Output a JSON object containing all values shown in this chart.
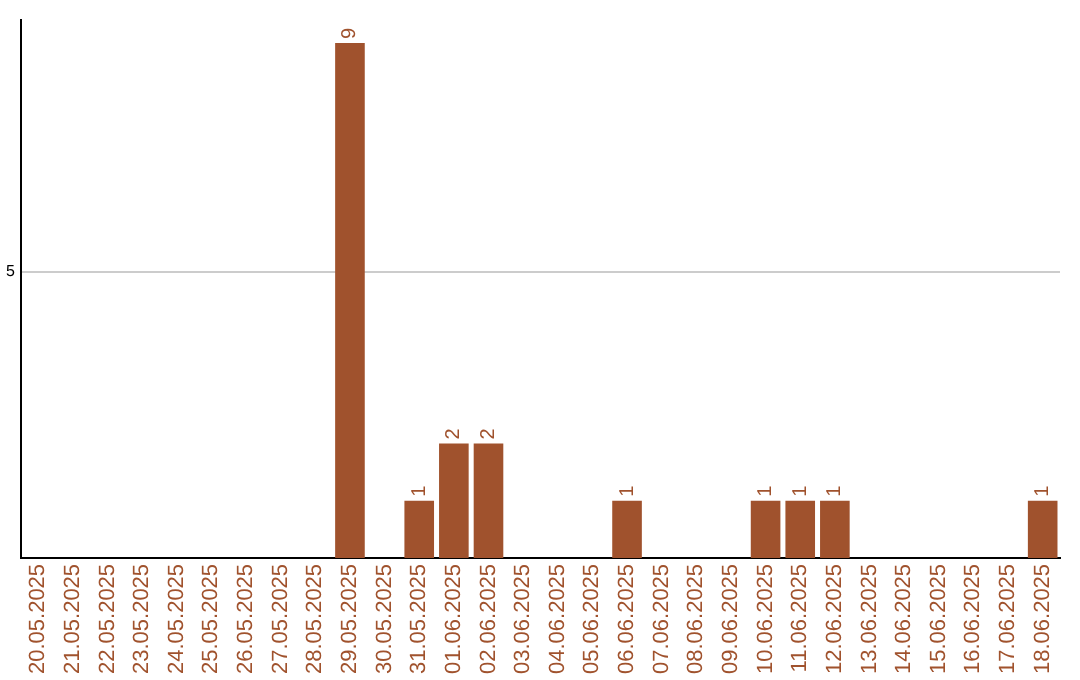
{
  "chart_data": {
    "type": "bar",
    "categories": [
      "20.05.2025",
      "21.05.2025",
      "22.05.2025",
      "23.05.2025",
      "24.05.2025",
      "25.05.2025",
      "26.05.2025",
      "27.05.2025",
      "28.05.2025",
      "29.05.2025",
      "30.05.2025",
      "31.05.2025",
      "01.06.2025",
      "02.06.2025",
      "03.06.2025",
      "04.06.2025",
      "05.06.2025",
      "06.06.2025",
      "07.06.2025",
      "08.06.2025",
      "09.06.2025",
      "10.06.2025",
      "11.06.2025",
      "12.06.2025",
      "13.06.2025",
      "14.06.2025",
      "15.06.2025",
      "16.06.2025",
      "17.06.2025",
      "18.06.2025"
    ],
    "values": [
      0,
      0,
      0,
      0,
      0,
      0,
      0,
      0,
      0,
      9,
      0,
      1,
      2,
      2,
      0,
      0,
      0,
      1,
      0,
      0,
      0,
      1,
      1,
      1,
      0,
      0,
      0,
      0,
      0,
      1
    ],
    "value_labels": [
      null,
      null,
      null,
      null,
      null,
      null,
      null,
      null,
      null,
      "9",
      null,
      "1",
      "2",
      "2",
      null,
      null,
      null,
      "1",
      null,
      null,
      null,
      "1",
      "1",
      "1",
      null,
      null,
      null,
      null,
      null,
      "1"
    ],
    "color": "#a0522d",
    "ylim": [
      0,
      9.4
    ],
    "yticks": [
      5
    ],
    "grid": "y",
    "legend": false
  }
}
